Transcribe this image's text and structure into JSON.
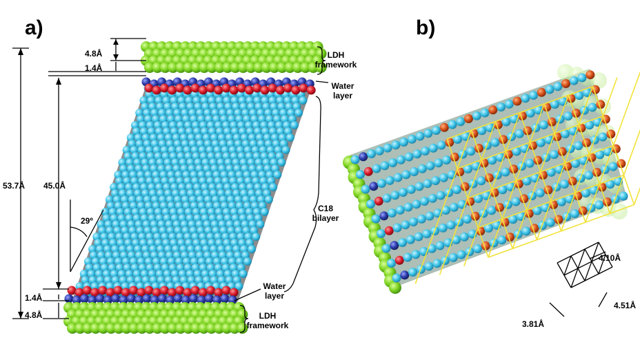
{
  "panel_a": {
    "label": "a)",
    "dimensions": {
      "total": "53.7Å",
      "bilayer": "45.0Å",
      "top_framework": "4.8Å",
      "top_water": "1.4Å",
      "bottom_water": "1.4Å",
      "bottom_framework": "4.8Å",
      "tilt_angle": "29º"
    },
    "callouts": {
      "top_ldh_line1": "LDH",
      "top_ldh_line2": "framework",
      "top_water_line1": "Water",
      "top_water_line2": "layer",
      "bilayer_line1": "C18",
      "bilayer_line2": "bilayer",
      "bottom_water_line1": "Water",
      "bottom_water_line2": "layer",
      "bottom_ldh_line1": "LDH",
      "bottom_ldh_line2": "framework"
    }
  },
  "panel_b": {
    "label": "b)",
    "lattice": {
      "a": "4.10Å",
      "b": "4.51Å",
      "c": "3.81Å"
    }
  },
  "colors": {
    "ldh": "#7ed321",
    "ldh_dark": "#4a9a16",
    "water_red": "#d81a2a",
    "water_blue": "#2b3aa8",
    "chain": "#3cc3e6",
    "chain_gap": "#8a8a8a",
    "headgroup": "#d6501a",
    "lattice_line": "#f2e23a"
  }
}
